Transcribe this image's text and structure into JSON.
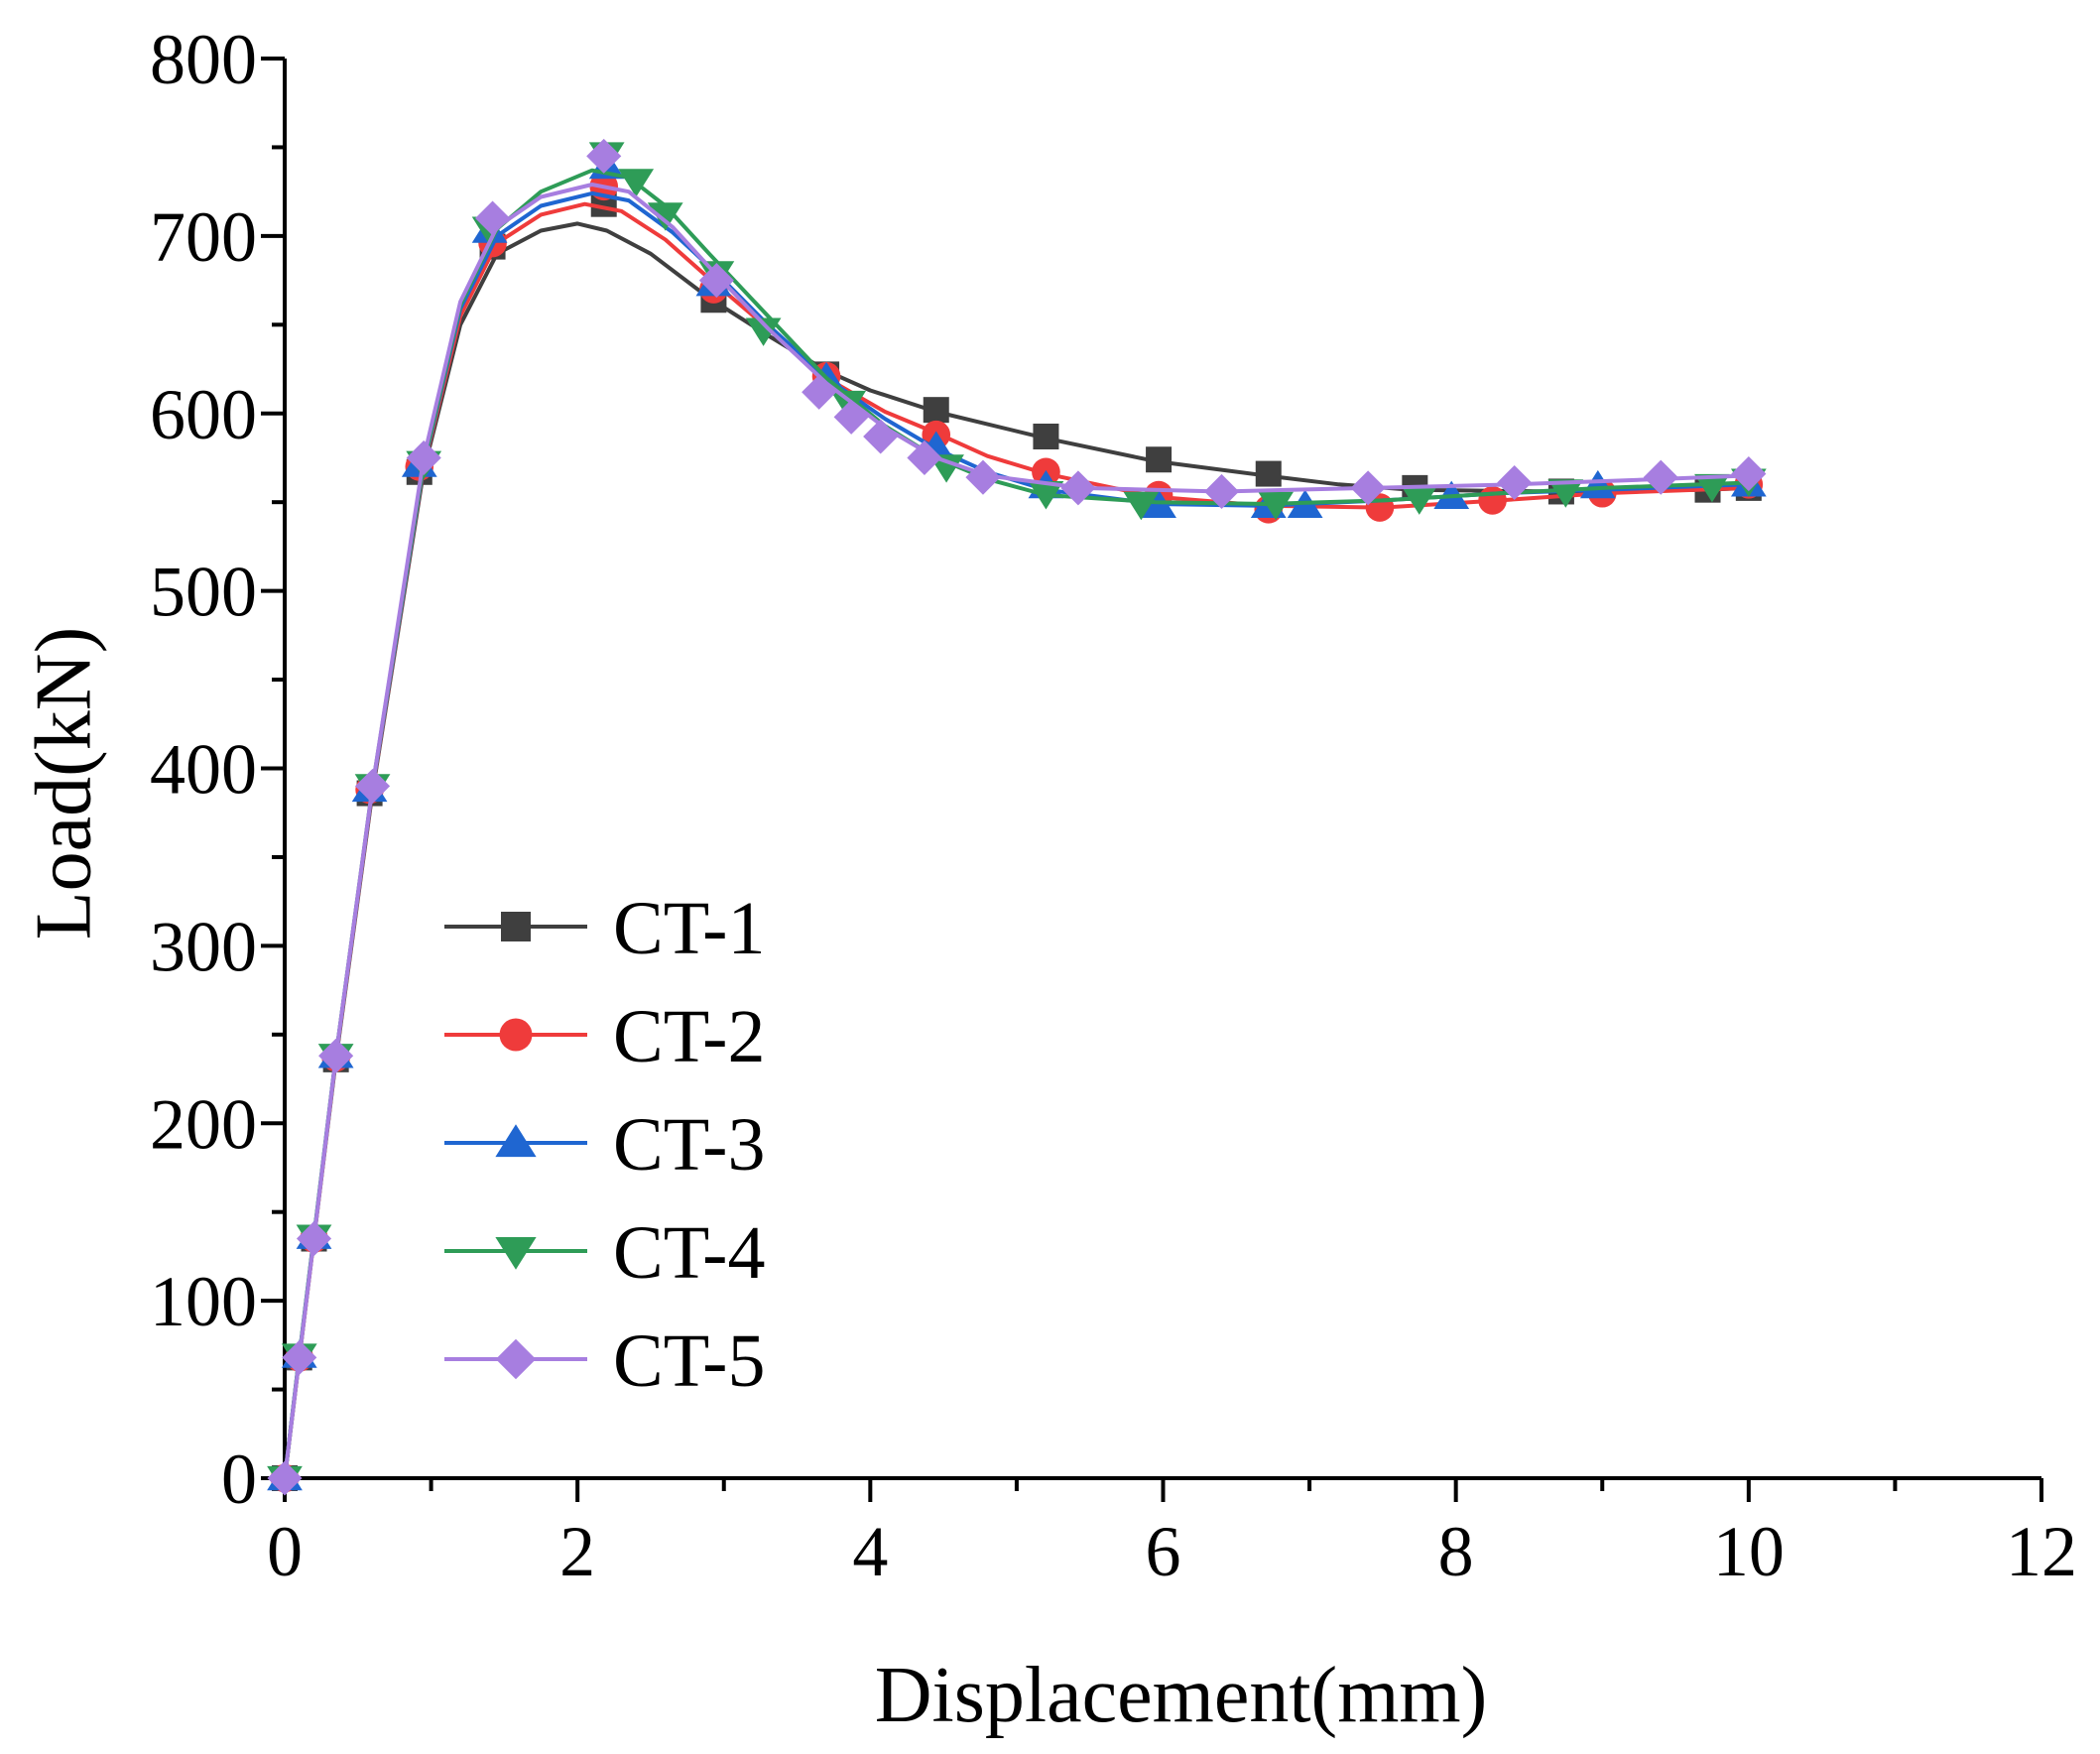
{
  "chart_data": {
    "type": "line",
    "title": "",
    "xlabel": "Displacement(mm)",
    "ylabel": "Load(kN)",
    "xlim": [
      0,
      12
    ],
    "ylim": [
      0,
      800
    ],
    "xticks": [
      0,
      2,
      4,
      6,
      8,
      10,
      12
    ],
    "yticks": [
      0,
      100,
      200,
      300,
      400,
      500,
      600,
      700,
      800
    ],
    "grid": false,
    "legend_position": "center-left",
    "series": [
      {
        "name": "CT-1",
        "color": "#3f3f3f",
        "marker": "square",
        "curve": [
          [
            0,
            0
          ],
          [
            0.1,
            68
          ],
          [
            0.2,
            135
          ],
          [
            0.35,
            236
          ],
          [
            0.6,
            387
          ],
          [
            0.95,
            568
          ],
          [
            1.2,
            650
          ],
          [
            1.45,
            690
          ],
          [
            1.75,
            703
          ],
          [
            2.0,
            707
          ],
          [
            2.2,
            703
          ],
          [
            2.5,
            690
          ],
          [
            2.9,
            665
          ],
          [
            3.3,
            644
          ],
          [
            3.7,
            624
          ],
          [
            4.0,
            613
          ],
          [
            4.45,
            601
          ],
          [
            5.2,
            586
          ],
          [
            5.95,
            573
          ],
          [
            6.7,
            565
          ],
          [
            7.2,
            560
          ],
          [
            7.7,
            557
          ],
          [
            8.7,
            556
          ],
          [
            9.7,
            557
          ],
          [
            10.0,
            558
          ]
        ],
        "points": [
          [
            0,
            0
          ],
          [
            0.1,
            68
          ],
          [
            0.2,
            135
          ],
          [
            0.35,
            236
          ],
          [
            0.58,
            386
          ],
          [
            0.92,
            567
          ],
          [
            1.42,
            694
          ],
          [
            2.18,
            718
          ],
          [
            2.93,
            664
          ],
          [
            3.7,
            622
          ],
          [
            4.45,
            602
          ],
          [
            5.2,
            587
          ],
          [
            5.97,
            574
          ],
          [
            6.72,
            566
          ],
          [
            7.72,
            558
          ],
          [
            8.72,
            556
          ],
          [
            9.72,
            557
          ],
          [
            10.0,
            558
          ]
        ]
      },
      {
        "name": "CT-2",
        "color": "#ef3b3b",
        "marker": "circle",
        "curve": [
          [
            0,
            0
          ],
          [
            0.1,
            68
          ],
          [
            0.2,
            135
          ],
          [
            0.35,
            237
          ],
          [
            0.6,
            388
          ],
          [
            0.95,
            570
          ],
          [
            1.2,
            655
          ],
          [
            1.45,
            696
          ],
          [
            1.75,
            712
          ],
          [
            2.05,
            718
          ],
          [
            2.3,
            714
          ],
          [
            2.6,
            698
          ],
          [
            2.9,
            676
          ],
          [
            3.3,
            648
          ],
          [
            3.7,
            620
          ],
          [
            4.1,
            601
          ],
          [
            4.45,
            589
          ],
          [
            4.8,
            576
          ],
          [
            5.2,
            566
          ],
          [
            5.95,
            553
          ],
          [
            6.7,
            548
          ],
          [
            7.5,
            547
          ],
          [
            8.3,
            551
          ],
          [
            9.0,
            555
          ],
          [
            10.0,
            558
          ]
        ],
        "points": [
          [
            0,
            0
          ],
          [
            0.1,
            68
          ],
          [
            0.2,
            135
          ],
          [
            0.35,
            237
          ],
          [
            0.58,
            388
          ],
          [
            0.92,
            570
          ],
          [
            1.42,
            696
          ],
          [
            2.18,
            728
          ],
          [
            2.93,
            670
          ],
          [
            3.7,
            621
          ],
          [
            4.45,
            588
          ],
          [
            5.2,
            567
          ],
          [
            5.97,
            554
          ],
          [
            6.72,
            546
          ],
          [
            7.48,
            547
          ],
          [
            8.25,
            551
          ],
          [
            9.0,
            555
          ],
          [
            10.0,
            560
          ]
        ]
      },
      {
        "name": "CT-3",
        "color": "#1f66d1",
        "marker": "triangle-up",
        "curve": [
          [
            0,
            0
          ],
          [
            0.1,
            69
          ],
          [
            0.2,
            136
          ],
          [
            0.35,
            238
          ],
          [
            0.6,
            389
          ],
          [
            0.95,
            571
          ],
          [
            1.2,
            659
          ],
          [
            1.45,
            700
          ],
          [
            1.75,
            717
          ],
          [
            2.1,
            724
          ],
          [
            2.35,
            720
          ],
          [
            2.65,
            702
          ],
          [
            2.95,
            679
          ],
          [
            3.3,
            650
          ],
          [
            3.7,
            620
          ],
          [
            4.1,
            597
          ],
          [
            4.45,
            580
          ],
          [
            4.8,
            567
          ],
          [
            5.2,
            557
          ],
          [
            5.95,
            549
          ],
          [
            6.7,
            548
          ],
          [
            7.5,
            551
          ],
          [
            8.3,
            555
          ],
          [
            9.0,
            557
          ],
          [
            10.0,
            560
          ]
        ],
        "points": [
          [
            0,
            0
          ],
          [
            0.1,
            69
          ],
          [
            0.2,
            136
          ],
          [
            0.35,
            238
          ],
          [
            0.58,
            388
          ],
          [
            0.92,
            571
          ],
          [
            1.4,
            703
          ],
          [
            2.2,
            739
          ],
          [
            2.93,
            673
          ],
          [
            3.7,
            620
          ],
          [
            4.45,
            581
          ],
          [
            5.2,
            559
          ],
          [
            5.97,
            548
          ],
          [
            6.72,
            548
          ],
          [
            6.97,
            548
          ],
          [
            7.97,
            553
          ],
          [
            8.97,
            559
          ],
          [
            10.0,
            560
          ]
        ]
      },
      {
        "name": "CT-4",
        "color": "#2e9c57",
        "marker": "triangle-down",
        "curve": [
          [
            0,
            0
          ],
          [
            0.1,
            69
          ],
          [
            0.2,
            136
          ],
          [
            0.35,
            238
          ],
          [
            0.6,
            390
          ],
          [
            0.95,
            572
          ],
          [
            1.2,
            661
          ],
          [
            1.45,
            704
          ],
          [
            1.75,
            725
          ],
          [
            2.1,
            737
          ],
          [
            2.35,
            733
          ],
          [
            2.6,
            717
          ],
          [
            2.9,
            690
          ],
          [
            3.3,
            655
          ],
          [
            3.7,
            620
          ],
          [
            4.1,
            593
          ],
          [
            4.45,
            575
          ],
          [
            4.8,
            563
          ],
          [
            5.2,
            554
          ],
          [
            5.95,
            550
          ],
          [
            6.7,
            549
          ],
          [
            7.5,
            551
          ],
          [
            8.3,
            555
          ],
          [
            9.0,
            558
          ],
          [
            10.0,
            561
          ]
        ],
        "points": [
          [
            0,
            0
          ],
          [
            0.1,
            69
          ],
          [
            0.2,
            136
          ],
          [
            0.35,
            238
          ],
          [
            0.6,
            390
          ],
          [
            0.95,
            572
          ],
          [
            1.4,
            704
          ],
          [
            2.2,
            746
          ],
          [
            2.4,
            731
          ],
          [
            2.6,
            712
          ],
          [
            2.95,
            679
          ],
          [
            3.27,
            647
          ],
          [
            3.85,
            606
          ],
          [
            4.52,
            570
          ],
          [
            5.2,
            555
          ],
          [
            5.85,
            549
          ],
          [
            6.77,
            549
          ],
          [
            7.75,
            552
          ],
          [
            8.75,
            556
          ],
          [
            9.75,
            559
          ],
          [
            10.0,
            562
          ]
        ]
      },
      {
        "name": "CT-5",
        "color": "#a77ee0",
        "marker": "diamond",
        "curve": [
          [
            0,
            0
          ],
          [
            0.1,
            68
          ],
          [
            0.2,
            135
          ],
          [
            0.35,
            238
          ],
          [
            0.6,
            390
          ],
          [
            0.95,
            575
          ],
          [
            1.2,
            663
          ],
          [
            1.45,
            705
          ],
          [
            1.75,
            722
          ],
          [
            2.1,
            729
          ],
          [
            2.35,
            725
          ],
          [
            2.65,
            705
          ],
          [
            2.95,
            678
          ],
          [
            3.3,
            648
          ],
          [
            3.7,
            617
          ],
          [
            4.1,
            592
          ],
          [
            4.45,
            575
          ],
          [
            4.8,
            565
          ],
          [
            5.45,
            558
          ],
          [
            6.4,
            556
          ],
          [
            7.4,
            558
          ],
          [
            8.4,
            560
          ],
          [
            9.4,
            563
          ],
          [
            10.0,
            565
          ]
        ],
        "points": [
          [
            0,
            0
          ],
          [
            0.1,
            68
          ],
          [
            0.2,
            135
          ],
          [
            0.35,
            238
          ],
          [
            0.6,
            390
          ],
          [
            0.95,
            575
          ],
          [
            1.42,
            710
          ],
          [
            2.18,
            745
          ],
          [
            2.95,
            675
          ],
          [
            3.65,
            612
          ],
          [
            3.87,
            598
          ],
          [
            4.07,
            587
          ],
          [
            4.37,
            575
          ],
          [
            4.77,
            564
          ],
          [
            5.42,
            558
          ],
          [
            6.4,
            556
          ],
          [
            7.4,
            558
          ],
          [
            8.4,
            561
          ],
          [
            9.4,
            564
          ],
          [
            10.0,
            566
          ]
        ]
      }
    ]
  }
}
